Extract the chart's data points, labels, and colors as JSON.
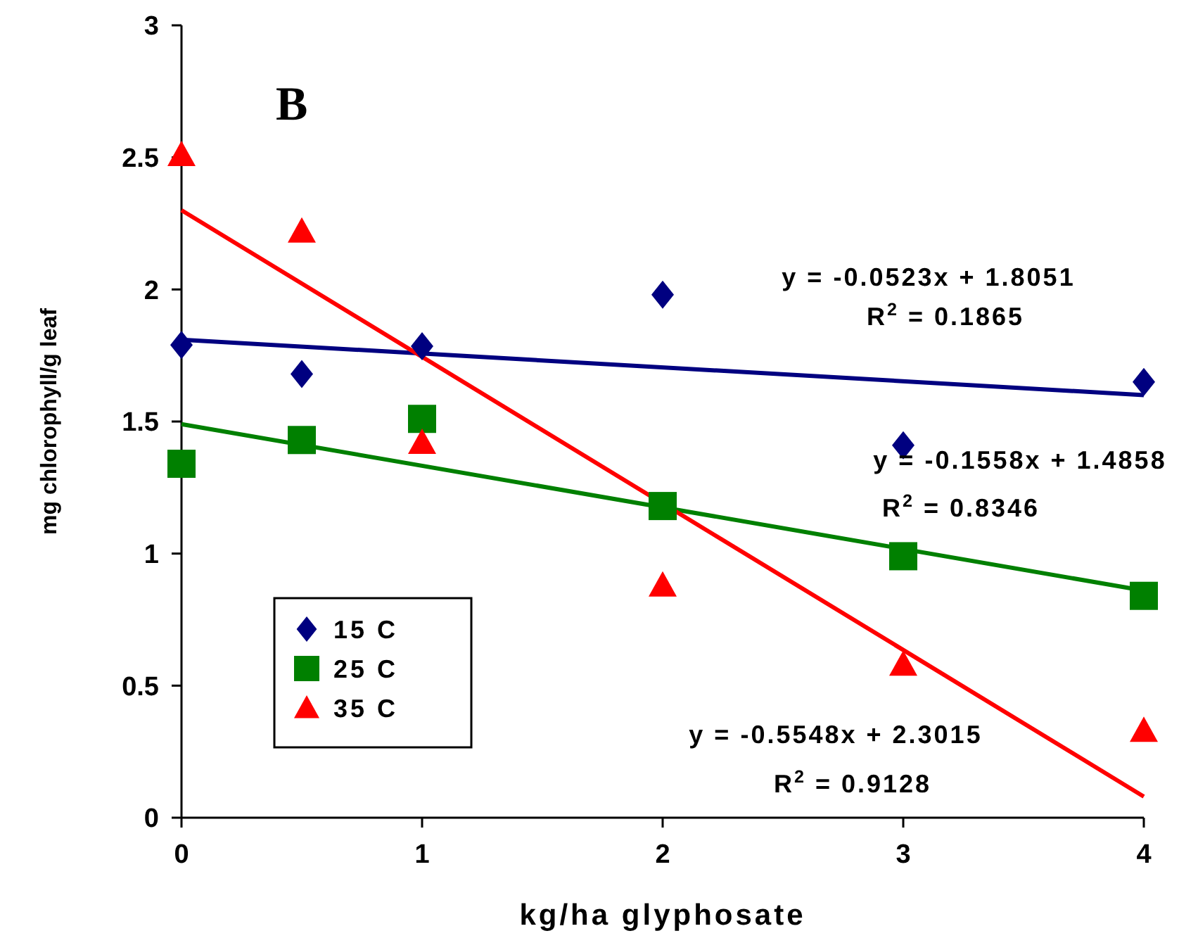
{
  "chart_data": {
    "type": "scatter",
    "title": "B",
    "xlabel": "kg/ha glyphosate",
    "ylabel": "mg chlorophyll/g leaf",
    "xlim": [
      0,
      4
    ],
    "xticks": [
      0,
      1,
      2,
      3,
      4
    ],
    "ylim": [
      0,
      3
    ],
    "yticks": [
      0,
      0.5,
      1,
      1.5,
      2,
      2.5,
      3
    ],
    "grid": false,
    "legend": "bottom left",
    "series": [
      {
        "name": "15 C",
        "color": "#000080",
        "marker": "diamond",
        "x": [
          0,
          0.5,
          1,
          2,
          3,
          4
        ],
        "values": [
          1.79,
          1.68,
          1.785,
          1.98,
          1.41,
          1.65
        ]
      },
      {
        "name": "25 C",
        "color": "#008000",
        "marker": "square",
        "x": [
          0,
          0.5,
          1,
          2,
          3,
          4
        ],
        "values": [
          1.34,
          1.43,
          1.51,
          1.18,
          0.99,
          0.84
        ]
      },
      {
        "name": "35 C",
        "color": "#ff0000",
        "marker": "triangle",
        "x": [
          0,
          0.5,
          1,
          2,
          3,
          4
        ],
        "values": [
          2.51,
          2.22,
          1.42,
          0.88,
          0.58,
          0.33
        ]
      },
      {
        "type": "line",
        "color": "#000080",
        "marker": "none",
        "x": [
          0,
          4
        ],
        "values": [
          1.81,
          1.6
        ]
      },
      {
        "type": "line",
        "color": "#008000",
        "marker": "none",
        "x": [
          0,
          4
        ],
        "values": [
          1.49,
          0.86
        ]
      },
      {
        "type": "line",
        "color": "#ff0000",
        "marker": "none",
        "x": [
          0,
          4
        ],
        "values": [
          2.3,
          0.08
        ]
      }
    ],
    "annotations": [
      "y = -0.0523x + 1.8051",
      "R$^{2}$ = 0.1865",
      "y = -0.1558x + 1.4858",
      "R$^{2}$ = 0.8346",
      "y = -0.5548x + 2.3015",
      "R$^{2}$ = 0.9128"
    ]
  }
}
